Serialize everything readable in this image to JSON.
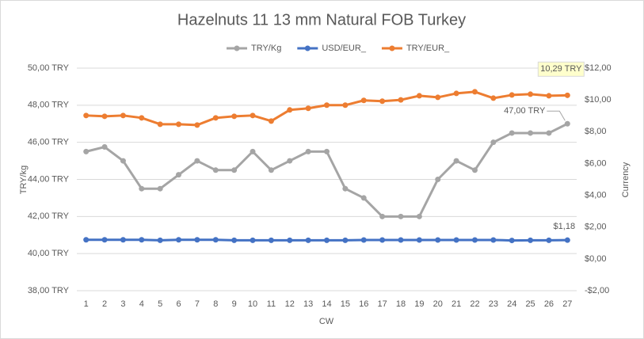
{
  "chart_data": {
    "type": "line",
    "title": "Hazelnuts 11 13 mm Natural FOB Turkey",
    "x_label": "CW",
    "y_label": "TRY/kg",
    "y2_label": "Currency",
    "categories": [
      "1",
      "2",
      "3",
      "4",
      "5",
      "6",
      "7",
      "8",
      "9",
      "10",
      "11",
      "12",
      "13",
      "14",
      "15",
      "16",
      "17",
      "18",
      "19",
      "20",
      "21",
      "22",
      "23",
      "24",
      "25",
      "26",
      "27"
    ],
    "series": [
      {
        "name": "TRY/Kg",
        "color": "#a5a5a5",
        "axis": "y",
        "values": [
          45.5,
          45.75,
          45,
          43.5,
          43.5,
          44.25,
          45,
          44.5,
          44.5,
          45.5,
          44.5,
          45,
          45.5,
          45.5,
          43.5,
          43,
          42,
          42,
          42,
          44,
          45,
          44.5,
          46,
          46.5,
          46.5,
          46.5,
          47
        ],
        "value_labels": [
          null,
          null,
          null,
          null,
          null,
          null,
          null,
          null,
          null,
          null,
          null,
          null,
          null,
          null,
          null,
          null,
          null,
          null,
          null,
          null,
          null,
          null,
          null,
          null,
          null,
          null,
          "47,00 TRY"
        ]
      },
      {
        "name": "USD/EUR_",
        "color": "#4472c4",
        "axis": "y2",
        "values": [
          1.2,
          1.2,
          1.2,
          1.2,
          1.17,
          1.2,
          1.2,
          1.2,
          1.17,
          1.17,
          1.17,
          1.17,
          1.17,
          1.17,
          1.17,
          1.19,
          1.19,
          1.19,
          1.19,
          1.19,
          1.19,
          1.19,
          1.19,
          1.16,
          1.17,
          1.17,
          1.18
        ],
        "value_labels": [
          null,
          null,
          null,
          null,
          null,
          null,
          null,
          null,
          null,
          null,
          null,
          null,
          null,
          null,
          null,
          null,
          null,
          null,
          null,
          null,
          null,
          null,
          null,
          null,
          null,
          null,
          "$1,18"
        ]
      },
      {
        "name": "TRY/EUR_",
        "color": "#ed7d31",
        "axis": "y2",
        "values": [
          9.02,
          8.97,
          9.02,
          8.87,
          8.47,
          8.47,
          8.42,
          8.87,
          8.97,
          9.02,
          8.67,
          9.37,
          9.47,
          9.67,
          9.67,
          9.97,
          9.92,
          10.0,
          10.26,
          10.16,
          10.41,
          10.51,
          10.11,
          10.31,
          10.36,
          10.26,
          10.29
        ],
        "value_labels": [
          null,
          null,
          null,
          null,
          null,
          null,
          null,
          null,
          null,
          null,
          null,
          null,
          null,
          null,
          null,
          null,
          null,
          null,
          null,
          null,
          null,
          null,
          null,
          null,
          null,
          null,
          "10,29 TRY"
        ]
      }
    ],
    "ylim": [
      38,
      50
    ],
    "yticks": [
      {
        "value": 38,
        "label": "38,00 TRY"
      },
      {
        "value": 40,
        "label": "40,00 TRY"
      },
      {
        "value": 42,
        "label": "42,00 TRY"
      },
      {
        "value": 44,
        "label": "44,00 TRY"
      },
      {
        "value": 46,
        "label": "46,00 TRY"
      },
      {
        "value": 48,
        "label": "48,00 TRY"
      },
      {
        "value": 50,
        "label": "50,00 TRY"
      }
    ],
    "y2lim": [
      -2,
      12
    ],
    "y2ticks": [
      {
        "value": -2,
        "label": "-$2,00"
      },
      {
        "value": 0,
        "label": "$0,00"
      },
      {
        "value": 2,
        "label": "$2,00"
      },
      {
        "value": 4,
        "label": "$4,00"
      },
      {
        "value": 6,
        "label": "$6,00"
      },
      {
        "value": 8,
        "label": "$8,00"
      },
      {
        "value": 10,
        "label": "$10,00"
      },
      {
        "value": 12,
        "label": "$12,00"
      }
    ],
    "grid": true,
    "legend": "top"
  }
}
